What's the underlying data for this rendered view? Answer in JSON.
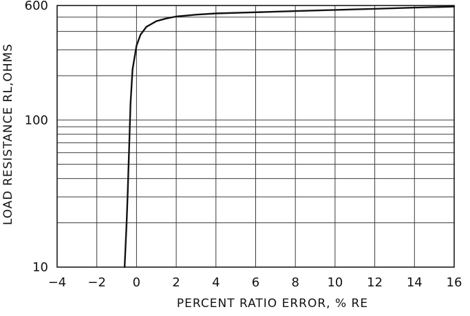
{
  "chart_data": {
    "type": "line",
    "title": "",
    "xlabel": "PERCENT RATIO ERROR, % RE",
    "ylabel": "LOAD RESISTANCE RL,OHMS",
    "xlim": [
      -4,
      16
    ],
    "ylim": [
      10,
      600
    ],
    "y_scale": "log",
    "grid": true,
    "legend": "none",
    "x_ticks": [
      {
        "value": -4,
        "label": "−4"
      },
      {
        "value": -2,
        "label": "−2"
      },
      {
        "value": 0,
        "label": "0"
      },
      {
        "value": 2,
        "label": "2"
      },
      {
        "value": 4,
        "label": "4"
      },
      {
        "value": 6,
        "label": "6"
      },
      {
        "value": 8,
        "label": "8"
      },
      {
        "value": 10,
        "label": "10"
      },
      {
        "value": 12,
        "label": "12"
      },
      {
        "value": 14,
        "label": "14"
      },
      {
        "value": 16,
        "label": "16"
      }
    ],
    "y_ticks": [
      {
        "value": 10,
        "label": "10"
      },
      {
        "value": 100,
        "label": "100"
      },
      {
        "value": 600,
        "label": "600"
      }
    ],
    "y_gridlines": [
      10,
      20,
      30,
      40,
      50,
      60,
      70,
      80,
      90,
      100,
      200,
      300,
      400,
      500,
      600
    ],
    "series": [
      {
        "x": [
          -0.6,
          -0.55,
          -0.5,
          -0.45,
          -0.4,
          -0.35,
          -0.3,
          -0.2,
          0,
          0.2,
          0.5,
          1,
          1.5,
          2,
          3,
          4,
          6,
          8,
          10,
          12,
          14,
          16
        ],
        "y": [
          10,
          14,
          20,
          30,
          50,
          80,
          130,
          220,
          320,
          380,
          430,
          470,
          490,
          505,
          520,
          530,
          540,
          550,
          560,
          570,
          580,
          590
        ]
      }
    ]
  },
  "colors": {
    "line": "#111111",
    "grid": "#3a3a3a",
    "background": "#ffffff"
  }
}
